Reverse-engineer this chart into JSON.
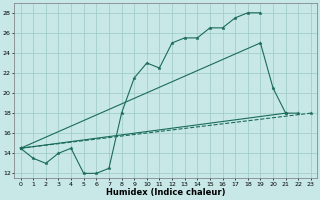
{
  "xlabel": "Humidex (Indice chaleur)",
  "bg_color": "#c8e8e8",
  "grid_color": "#9ec8c8",
  "line_color": "#1a6b5a",
  "xlim": [
    -0.5,
    23.5
  ],
  "ylim": [
    11.5,
    29.0
  ],
  "yticks": [
    12,
    14,
    16,
    18,
    20,
    22,
    24,
    26,
    28
  ],
  "xticks": [
    0,
    1,
    2,
    3,
    4,
    5,
    6,
    7,
    8,
    9,
    10,
    11,
    12,
    13,
    14,
    15,
    16,
    17,
    18,
    19,
    20,
    21,
    22,
    23
  ],
  "line1": {
    "x": [
      0,
      1,
      2,
      3,
      4,
      5,
      6,
      7,
      8,
      9,
      10,
      11,
      12,
      13,
      14,
      15,
      16,
      17,
      18,
      19
    ],
    "y": [
      14.5,
      13.5,
      13.0,
      14.0,
      14.5,
      12.0,
      12.0,
      12.5,
      18.0,
      21.5,
      23.0,
      22.5,
      25.0,
      25.5,
      25.5,
      26.5,
      26.5,
      27.5,
      28.0,
      28.0
    ],
    "linestyle": "-"
  },
  "line2": {
    "x": [
      0,
      19,
      20,
      21
    ],
    "y": [
      14.5,
      25.0,
      20.5,
      18.0
    ],
    "linestyle": "-"
  },
  "line3": {
    "x": [
      0,
      21,
      22
    ],
    "y": [
      14.5,
      18.0,
      18.0
    ],
    "linestyle": "-"
  },
  "line4": {
    "x": [
      0,
      23
    ],
    "y": [
      14.5,
      18.0
    ],
    "linestyle": "--"
  }
}
